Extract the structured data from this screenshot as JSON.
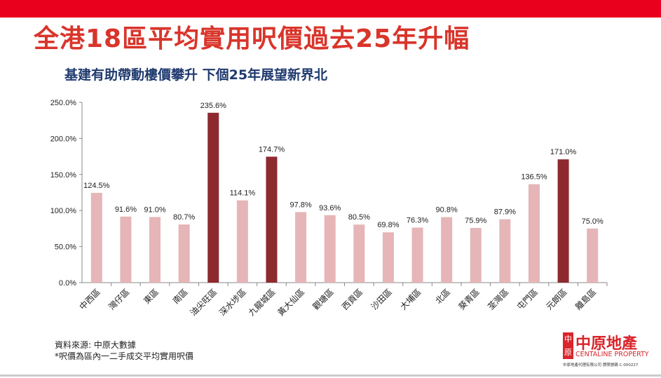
{
  "title": "全港18區平均實用呎價過去25年升幅",
  "subtitle": "基建有助帶動樓價攀升  下個25年展望新界北",
  "notes": {
    "source": "資料來源: 中原大數據",
    "footnote": "*呎價為區內一二手成交平均實用呎價"
  },
  "logo": {
    "seal": "中原",
    "chinese": "中原地產",
    "english": "CENTALINE PROPERTY",
    "license": "中原地產代理有限公司  牌照號碼 C-000227"
  },
  "colors": {
    "top_bar": "#e8001c",
    "title": "#d9352b",
    "subtitle": "#1f3a6e",
    "bar_normal": "#e6b5b7",
    "bar_highlight": "#8c2a2f"
  },
  "chart_data": {
    "type": "bar",
    "categories": [
      "中西區",
      "灣仔區",
      "東區",
      "南區",
      "油尖旺區",
      "深水埗區",
      "九龍城區",
      "黃大仙區",
      "觀塘區",
      "西貢區",
      "沙田區",
      "大埔區",
      "北區",
      "葵青區",
      "荃灣區",
      "屯門區",
      "元朗區",
      "離島區"
    ],
    "values": [
      124.5,
      91.6,
      91.0,
      80.7,
      235.6,
      114.1,
      174.7,
      97.8,
      93.6,
      80.5,
      69.8,
      76.3,
      90.8,
      75.9,
      87.9,
      136.5,
      171.0,
      75.0
    ],
    "data_labels": [
      "124.5%",
      "91.6%",
      "91.0%",
      "80.7%",
      "235.6%",
      "114.1%",
      "174.7%",
      "97.8%",
      "93.6%",
      "80.5%",
      "69.8%",
      "76.3%",
      "90.8%",
      "75.9%",
      "87.9%",
      "136.5%",
      "171.0%",
      "75.0%"
    ],
    "highlighted": [
      "油尖旺區",
      "九龍城區",
      "元朗區"
    ],
    "ylim": [
      0,
      250
    ],
    "yticks": [
      "0.0%",
      "50.0%",
      "100.0%",
      "150.0%",
      "200.0%",
      "250.0%"
    ],
    "grid": false,
    "xlabel": "",
    "ylabel": ""
  }
}
